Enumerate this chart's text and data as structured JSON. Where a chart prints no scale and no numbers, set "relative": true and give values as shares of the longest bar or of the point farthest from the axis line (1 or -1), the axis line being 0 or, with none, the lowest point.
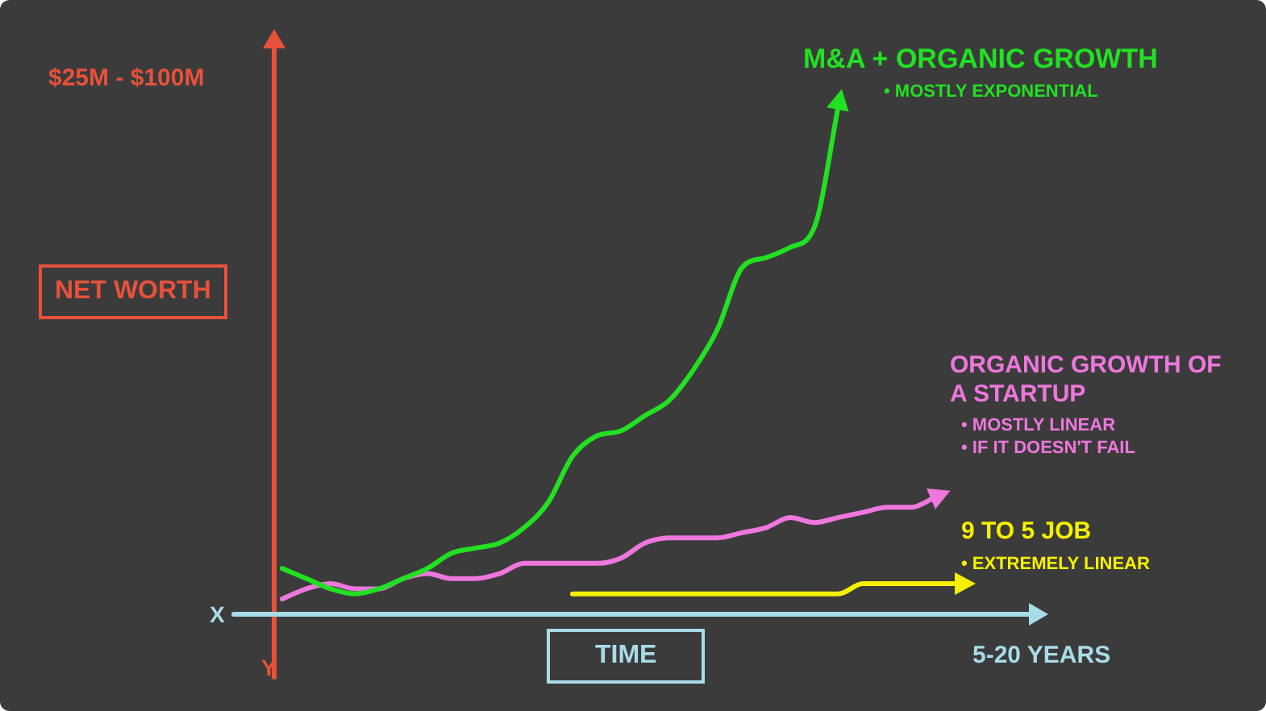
{
  "chart_data": {
    "type": "line",
    "relative": true,
    "ylabel": "NET WORTH",
    "xlabel": "TIME",
    "legend": false,
    "marker": "none",
    "line_style": "solid",
    "categories": [
      null,
      null,
      null,
      null,
      null,
      null,
      null,
      null,
      null,
      null,
      null,
      null,
      null,
      null,
      null,
      null,
      null,
      null,
      null,
      null,
      null,
      null,
      null,
      null,
      null,
      null,
      null,
      null,
      null,
      null,
      null,
      null,
      null,
      null
    ],
    "series": [
      {
        "name": "M&A + ORGANIC GROWTH",
        "color": "#22e022",
        "values": [
          null,
          null,
          0.09,
          0.07,
          0.05,
          0.04,
          0.05,
          0.07,
          0.09,
          0.12,
          0.13,
          0.14,
          0.17,
          0.22,
          0.31,
          0.35,
          0.36,
          0.39,
          0.42,
          0.48,
          0.56,
          0.68,
          0.7,
          0.72,
          0.76,
          1,
          null,
          null,
          null,
          null,
          null,
          null,
          null,
          null
        ]
      },
      {
        "name": "ORGANIC GROWTH OF A STARTUP",
        "color": "#ee77dd",
        "values": [
          null,
          null,
          0.03,
          0.05,
          0.06,
          0.05,
          0.05,
          0.07,
          0.08,
          0.07,
          0.07,
          0.08,
          0.1,
          0.1,
          0.1,
          0.1,
          0.11,
          0.14,
          0.15,
          0.15,
          0.15,
          0.16,
          0.17,
          0.19,
          0.18,
          0.19,
          0.2,
          0.21,
          0.21,
          0.23,
          null,
          null,
          null,
          null
        ]
      },
      {
        "name": "9 TO 5 JOB",
        "color": "#f5f000",
        "values": [
          null,
          null,
          null,
          null,
          null,
          null,
          null,
          null,
          null,
          null,
          null,
          null,
          null,
          null,
          0.04,
          0.04,
          0.04,
          0.04,
          0.04,
          0.04,
          0.04,
          0.04,
          0.04,
          0.04,
          0.04,
          0.04,
          0.06,
          0.06,
          0.06,
          0.06,
          0.06,
          null,
          null,
          null
        ]
      }
    ],
    "annotations": [
      "$25M - $100M",
      "• MOSTLY EXPONENTIAL",
      "• MOSTLY LINEAR",
      "• IF IT DOESN'T FAIL",
      "• EXTREMELY LINEAR",
      "X",
      "Y",
      "5-20 YEARS"
    ]
  }
}
